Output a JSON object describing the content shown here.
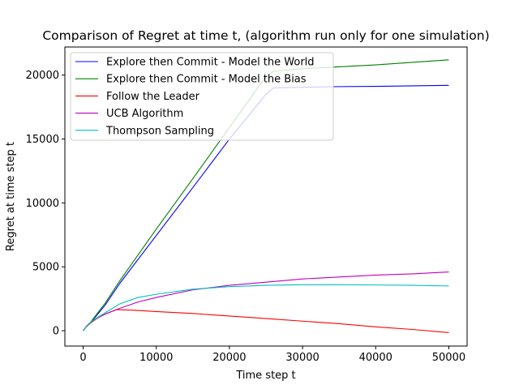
{
  "chart_data": {
    "type": "line",
    "title": "Comparison of Regret at time t, (algorithm run only for one simulation)",
    "xlabel": "Time step t",
    "ylabel": "Regret at time step t",
    "xlim": [
      -2500,
      52500
    ],
    "ylim": [
      -1200,
      22200
    ],
    "xticks": [
      0,
      10000,
      20000,
      30000,
      40000,
      50000
    ],
    "yticks": [
      0,
      5000,
      10000,
      15000,
      20000
    ],
    "grid": false,
    "legend_position": "upper-left",
    "series": [
      {
        "name": "Explore then Commit - Model the World",
        "color": "#0000ff",
        "x": [
          0,
          500,
          1000,
          2000,
          3000,
          5000,
          10000,
          15000,
          20000,
          25000,
          26000,
          30000,
          35000,
          40000,
          45000,
          50000
        ],
        "y": [
          0,
          350,
          600,
          1300,
          2000,
          3700,
          7450,
          11200,
          15000,
          18500,
          19000,
          19050,
          19100,
          19120,
          19160,
          19200
        ]
      },
      {
        "name": "Explore then Commit - Model the Bias",
        "color": "#008000",
        "x": [
          0,
          500,
          1000,
          2000,
          3000,
          5000,
          10000,
          15000,
          20000,
          25000,
          26000,
          30000,
          35000,
          40000,
          45000,
          50000
        ],
        "y": [
          0,
          380,
          650,
          1400,
          2150,
          3900,
          7950,
          11900,
          15900,
          19900,
          20300,
          20500,
          20650,
          20800,
          21000,
          21200
        ]
      },
      {
        "name": "Follow the Leader",
        "color": "#ff0000",
        "x": [
          0,
          500,
          1000,
          2000,
          3000,
          4500,
          7000,
          10000,
          15000,
          20000,
          25000,
          30000,
          35000,
          40000,
          45000,
          50000
        ],
        "y": [
          0,
          350,
          600,
          1000,
          1300,
          1650,
          1600,
          1500,
          1350,
          1150,
          950,
          750,
          550,
          300,
          100,
          -150
        ]
      },
      {
        "name": "UCB Algorithm",
        "color": "#bf00bf",
        "x": [
          0,
          500,
          1000,
          2000,
          3000,
          5000,
          7500,
          10000,
          15000,
          20000,
          25000,
          30000,
          35000,
          40000,
          45000,
          50000
        ],
        "y": [
          0,
          380,
          650,
          1000,
          1300,
          1750,
          2250,
          2600,
          3200,
          3550,
          3800,
          4050,
          4200,
          4350,
          4450,
          4600
        ]
      },
      {
        "name": "Thompson Sampling",
        "color": "#00bfbf",
        "x": [
          0,
          500,
          1000,
          2000,
          3000,
          5000,
          7500,
          10000,
          15000,
          20000,
          25000,
          30000,
          35000,
          40000,
          45000,
          50000
        ],
        "y": [
          0,
          380,
          650,
          1050,
          1400,
          2100,
          2600,
          2850,
          3250,
          3450,
          3550,
          3600,
          3600,
          3580,
          3550,
          3500
        ]
      }
    ]
  }
}
